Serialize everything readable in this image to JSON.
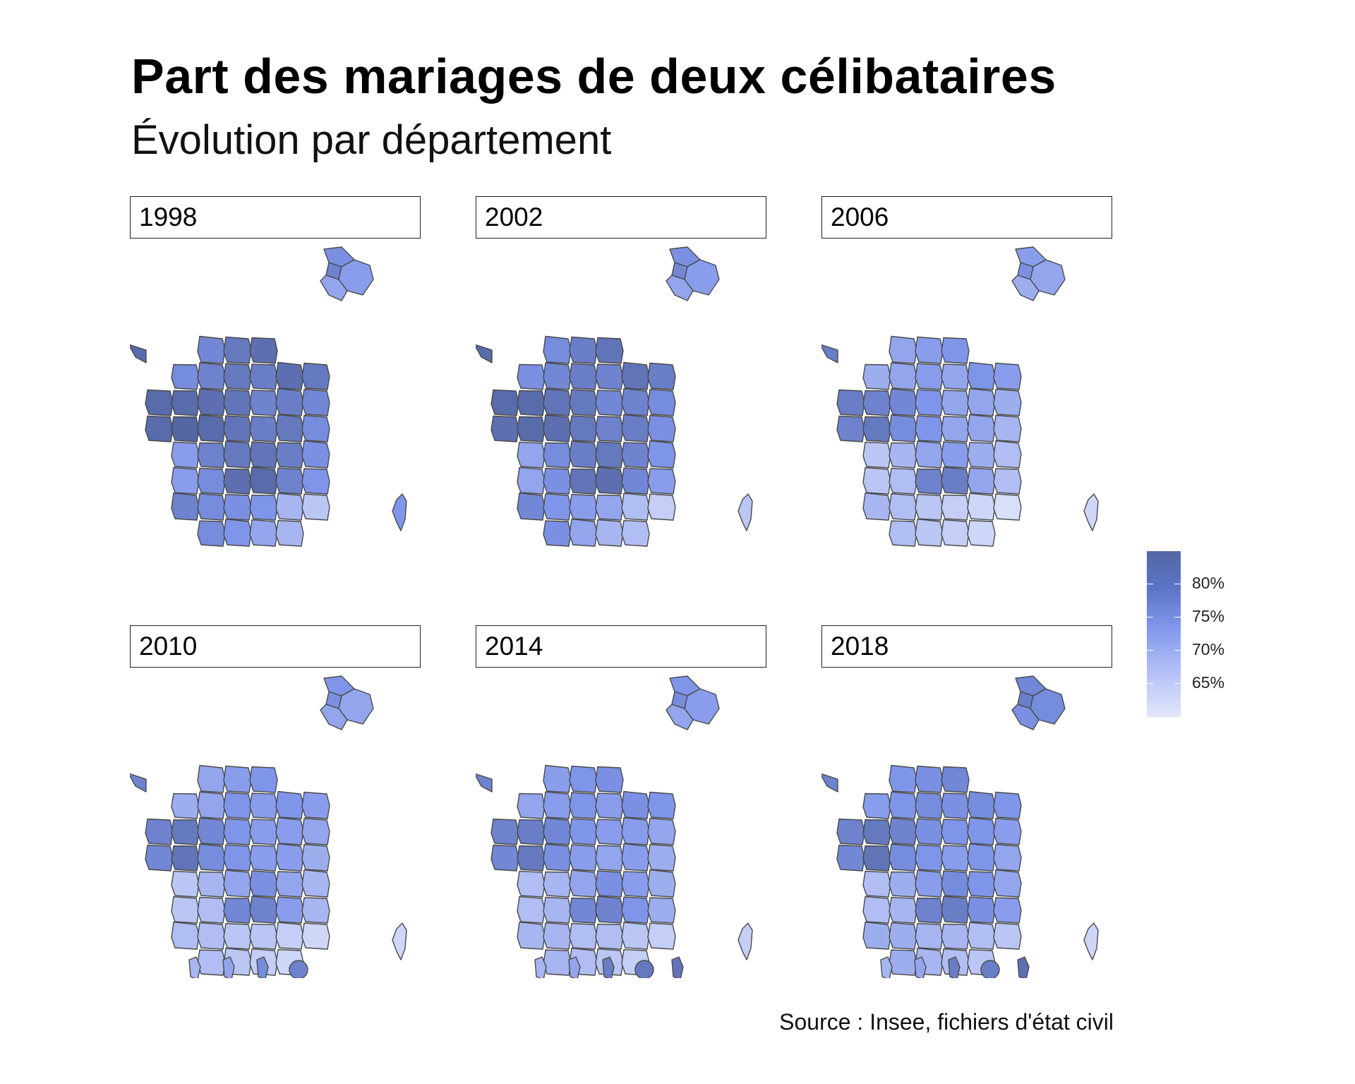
{
  "chart": {
    "title": "Part des mariages de deux célibataires",
    "subtitle": "Évolution par département",
    "source": "Source : Insee, fichiers d'état civil"
  },
  "chart_data": {
    "type": "heatmap",
    "title": "Part des mariages de deux célibataires",
    "subtitle": "Évolution par département",
    "facets": [
      "1998",
      "2002",
      "2006",
      "2010",
      "2014",
      "2018"
    ],
    "legend": {
      "position": "right",
      "ticks": [
        "80%",
        "75%",
        "70%",
        "65%"
      ],
      "values": [
        80,
        75,
        70,
        65
      ],
      "range": [
        62,
        82
      ],
      "colors": {
        "low": "#e2e7fb",
        "mid": "#7f95ea",
        "high": "#5466a3"
      }
    },
    "regions": {
      "grid_cols": 8,
      "grid_rows": 8,
      "cells": [
        [
          2,
          0
        ],
        [
          3,
          0
        ],
        [
          4,
          0
        ],
        [
          1,
          1
        ],
        [
          2,
          1
        ],
        [
          3,
          1
        ],
        [
          4,
          1
        ],
        [
          5,
          1
        ],
        [
          6,
          1
        ],
        [
          0,
          2
        ],
        [
          1,
          2
        ],
        [
          2,
          2
        ],
        [
          3,
          2
        ],
        [
          4,
          2
        ],
        [
          5,
          2
        ],
        [
          6,
          2
        ],
        [
          0,
          3
        ],
        [
          1,
          3
        ],
        [
          2,
          3
        ],
        [
          3,
          3
        ],
        [
          4,
          3
        ],
        [
          5,
          3
        ],
        [
          6,
          3
        ],
        [
          1,
          4
        ],
        [
          2,
          4
        ],
        [
          3,
          4
        ],
        [
          4,
          4
        ],
        [
          5,
          4
        ],
        [
          6,
          4
        ],
        [
          1,
          5
        ],
        [
          2,
          5
        ],
        [
          3,
          5
        ],
        [
          4,
          5
        ],
        [
          5,
          5
        ],
        [
          6,
          5
        ],
        [
          1,
          6
        ],
        [
          2,
          6
        ],
        [
          3,
          6
        ],
        [
          4,
          6
        ],
        [
          5,
          6
        ],
        [
          6,
          6
        ],
        [
          2,
          7
        ],
        [
          3,
          7
        ],
        [
          4,
          7
        ],
        [
          5,
          7
        ]
      ]
    },
    "facet_values": {
      "1998": [
        75,
        78,
        80,
        74,
        76,
        78,
        77,
        80,
        78,
        81,
        81,
        80,
        79,
        76,
        77,
        75,
        81,
        82,
        81,
        79,
        77,
        78,
        74,
        71,
        76,
        78,
        79,
        77,
        73,
        71,
        74,
        80,
        81,
        76,
        72,
        76,
        74,
        73,
        72,
        68,
        66,
        74,
        72,
        70,
        68
      ],
      "2002": [
        74,
        77,
        79,
        73,
        75,
        77,
        76,
        79,
        77,
        81,
        81,
        79,
        78,
        75,
        76,
        74,
        80,
        81,
        80,
        78,
        76,
        77,
        73,
        70,
        74,
        77,
        78,
        76,
        72,
        70,
        73,
        79,
        80,
        75,
        71,
        75,
        72,
        71,
        70,
        67,
        65,
        73,
        70,
        68,
        67
      ],
      "2006": [
        70,
        71,
        72,
        69,
        70,
        71,
        70,
        72,
        71,
        77,
        76,
        75,
        72,
        70,
        70,
        69,
        76,
        78,
        74,
        72,
        70,
        70,
        68,
        66,
        68,
        70,
        71,
        69,
        67,
        66,
        67,
        76,
        77,
        70,
        67,
        68,
        67,
        66,
        65,
        64,
        63,
        67,
        66,
        65,
        64
      ],
      "2010": [
        70,
        71,
        72,
        69,
        70,
        72,
        71,
        72,
        71,
        76,
        78,
        75,
        72,
        71,
        71,
        70,
        75,
        79,
        74,
        72,
        71,
        71,
        69,
        66,
        68,
        70,
        73,
        70,
        68,
        66,
        67,
        75,
        76,
        71,
        68,
        67,
        67,
        66,
        66,
        65,
        64,
        67,
        66,
        65,
        64
      ],
      "2014": [
        71,
        72,
        73,
        70,
        71,
        72,
        71,
        73,
        72,
        76,
        77,
        75,
        72,
        71,
        71,
        70,
        75,
        78,
        73,
        71,
        70,
        71,
        69,
        67,
        68,
        70,
        73,
        71,
        69,
        67,
        68,
        75,
        76,
        72,
        69,
        68,
        68,
        67,
        67,
        66,
        65,
        68,
        67,
        66,
        65
      ],
      "2018": [
        72,
        73,
        75,
        71,
        72,
        74,
        73,
        74,
        72,
        76,
        78,
        76,
        73,
        72,
        72,
        71,
        75,
        79,
        74,
        72,
        71,
        72,
        70,
        67,
        69,
        71,
        74,
        72,
        70,
        67,
        68,
        76,
        77,
        73,
        71,
        69,
        69,
        68,
        68,
        67,
        66,
        69,
        68,
        67,
        66
      ]
    },
    "idf_values": {
      "1998": [
        73,
        76,
        71,
        70
      ],
      "2002": [
        73,
        75,
        71,
        70
      ],
      "2006": [
        71,
        73,
        70,
        69
      ],
      "2010": [
        72,
        73,
        70,
        70
      ],
      "2014": [
        72,
        74,
        71,
        70
      ],
      "2018": [
        75,
        77,
        74,
        73
      ]
    },
    "corsica_values": {
      "1998": 72,
      "2002": 66,
      "2006": 64,
      "2010": 64,
      "2014": 65,
      "2018": 64
    },
    "overseas_values": {
      "2010": [
        68,
        70,
        74,
        76
      ],
      "2014": [
        68,
        70,
        77,
        78,
        79
      ],
      "2018": [
        68,
        70,
        77,
        77,
        80
      ]
    }
  }
}
